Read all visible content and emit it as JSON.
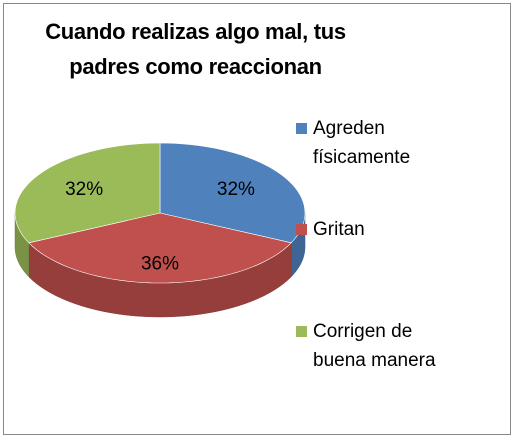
{
  "chart_data": {
    "type": "pie3d",
    "title": "Cuando realizas algo mal, tus padres como reaccionan",
    "categories": [
      "Agreden físicamente",
      "Gritan",
      "Corrigen de buena manera"
    ],
    "values": [
      32,
      36,
      32
    ],
    "value_labels": [
      "32%",
      "36%",
      "32%"
    ],
    "colors": [
      "#4f81bd",
      "#c0504d",
      "#9bbb59"
    ],
    "legend": "right"
  }
}
